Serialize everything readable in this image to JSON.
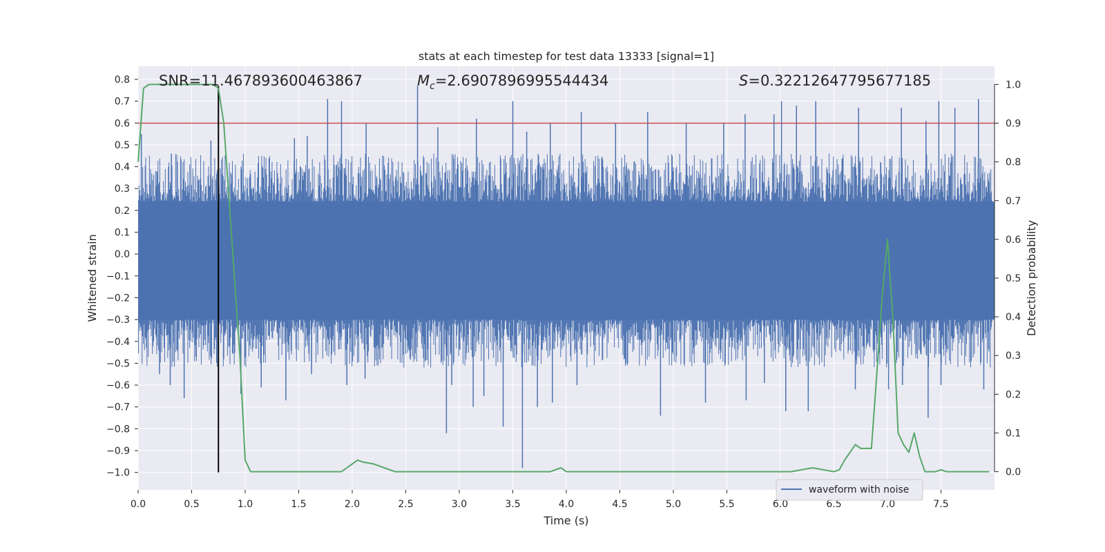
{
  "chart_data": {
    "type": "line",
    "title": "stats at each timestep for test data 13333 [signal=1]",
    "xlabel": "Time (s)",
    "ylabel": "Whitened strain",
    "y2label": "Detection probability",
    "xlim": [
      0.0,
      8.0
    ],
    "ylim": [
      -1.08,
      0.86
    ],
    "y2lim": [
      -0.047,
      1.047
    ],
    "x_ticks": [
      0.0,
      0.5,
      1.0,
      1.5,
      2.0,
      2.5,
      3.0,
      3.5,
      4.0,
      4.5,
      5.0,
      5.5,
      6.0,
      6.5,
      7.0,
      7.5
    ],
    "y_ticks": [
      0.8,
      0.7,
      0.6,
      0.5,
      0.4,
      0.3,
      0.2,
      0.1,
      0.0,
      -0.1,
      -0.2,
      -0.3,
      -0.4,
      -0.5,
      -0.6,
      -0.7,
      -0.8,
      -0.9,
      -1.0
    ],
    "y2_ticks": [
      1.0,
      0.9,
      0.8,
      0.7,
      0.6,
      0.5,
      0.4,
      0.3,
      0.2,
      0.1,
      0.0
    ],
    "grid": true,
    "legend": {
      "placement": "lower-right",
      "entries": [
        "waveform with noise"
      ]
    },
    "annotations": {
      "snr_label": "SNR=11.467893600463867",
      "mc_symbol": "M",
      "mc_subscript": "c",
      "mc_value": "=2.6907896995544434",
      "s_symbol": "S",
      "s_value": "=0.32212647795677185"
    },
    "threshold": {
      "value": 0.9,
      "axis": "right",
      "color": "#c44e52"
    },
    "marker_line": {
      "x": 0.75,
      "y_from": -1.0,
      "y_to": 0.77,
      "color": "#000000"
    },
    "waveform": {
      "name": "waveform with noise",
      "color": "#4c72b0",
      "typical_envelope": [
        -0.3,
        0.24
      ],
      "positive_spikes": [
        [
          0.03,
          0.55
        ],
        [
          0.31,
          0.46
        ],
        [
          0.68,
          0.52
        ],
        [
          1.46,
          0.53
        ],
        [
          1.58,
          0.54
        ],
        [
          1.77,
          0.71
        ],
        [
          1.9,
          0.7
        ],
        [
          2.13,
          0.6
        ],
        [
          2.61,
          0.77
        ],
        [
          2.8,
          0.58
        ],
        [
          3.16,
          0.62
        ],
        [
          3.5,
          0.7
        ],
        [
          3.63,
          0.56
        ],
        [
          3.85,
          0.6
        ],
        [
          4.14,
          0.65
        ],
        [
          4.46,
          0.6
        ],
        [
          4.76,
          0.65
        ],
        [
          5.12,
          0.6
        ],
        [
          5.47,
          0.6
        ],
        [
          5.67,
          0.64
        ],
        [
          5.94,
          0.64
        ],
        [
          6.01,
          0.7
        ],
        [
          6.15,
          0.68
        ],
        [
          6.33,
          0.7
        ],
        [
          6.73,
          0.67
        ],
        [
          7.13,
          0.67
        ],
        [
          7.36,
          0.61
        ],
        [
          7.48,
          0.7
        ],
        [
          7.63,
          0.67
        ],
        [
          7.85,
          0.71
        ]
      ],
      "negative_spikes": [
        [
          0.2,
          -0.55
        ],
        [
          0.3,
          -0.6
        ],
        [
          0.43,
          -0.66
        ],
        [
          0.96,
          -0.64
        ],
        [
          1.15,
          -0.61
        ],
        [
          1.38,
          -0.67
        ],
        [
          1.62,
          -0.55
        ],
        [
          1.95,
          -0.6
        ],
        [
          2.12,
          -0.57
        ],
        [
          2.88,
          -0.82
        ],
        [
          2.93,
          -0.6
        ],
        [
          3.13,
          -0.7
        ],
        [
          3.23,
          -0.65
        ],
        [
          3.41,
          -0.79
        ],
        [
          3.59,
          -0.98
        ],
        [
          3.73,
          -0.7
        ],
        [
          3.87,
          -0.68
        ],
        [
          4.1,
          -0.6
        ],
        [
          4.88,
          -0.74
        ],
        [
          5.3,
          -0.68
        ],
        [
          5.68,
          -0.67
        ],
        [
          5.85,
          -0.59
        ],
        [
          6.05,
          -0.72
        ],
        [
          6.26,
          -0.72
        ],
        [
          6.7,
          -0.62
        ],
        [
          7.01,
          -0.62
        ],
        [
          7.14,
          -0.6
        ],
        [
          7.38,
          -0.75
        ],
        [
          7.5,
          -0.6
        ],
        [
          7.9,
          -0.62
        ]
      ]
    },
    "probability": {
      "name": "detection probability",
      "color": "#55a868",
      "x": [
        0.0,
        0.05,
        0.1,
        0.15,
        0.2,
        0.3,
        0.4,
        0.5,
        0.6,
        0.65,
        0.7,
        0.75,
        0.8,
        0.85,
        0.9,
        0.95,
        1.0,
        1.05,
        1.1,
        1.2,
        1.3,
        1.4,
        1.5,
        1.6,
        1.7,
        1.75,
        1.8,
        1.9,
        1.95,
        2.0,
        2.05,
        2.1,
        2.2,
        2.25,
        2.3,
        2.4,
        2.5,
        2.6,
        2.7,
        2.8,
        2.9,
        3.0,
        3.1,
        3.2,
        3.3,
        3.4,
        3.5,
        3.6,
        3.7,
        3.8,
        3.85,
        3.95,
        4.0,
        4.1,
        4.2,
        4.3,
        4.4,
        4.5,
        4.6,
        4.7,
        4.8,
        4.9,
        5.0,
        5.1,
        5.2,
        5.3,
        5.4,
        5.5,
        5.6,
        5.7,
        5.8,
        5.9,
        6.0,
        6.1,
        6.2,
        6.3,
        6.4,
        6.5,
        6.55,
        6.6,
        6.65,
        6.7,
        6.75,
        6.8,
        6.85,
        6.9,
        6.95,
        7.0,
        7.05,
        7.1,
        7.15,
        7.2,
        7.25,
        7.3,
        7.35,
        7.4,
        7.45,
        7.5,
        7.55,
        7.6,
        7.65,
        7.7,
        7.8,
        7.9,
        7.95
      ],
      "values": [
        0.8,
        0.99,
        1.0,
        1.0,
        1.0,
        1.0,
        1.0,
        1.0,
        1.0,
        1.0,
        1.0,
        0.99,
        0.9,
        0.7,
        0.5,
        0.3,
        0.03,
        0.0,
        0.0,
        0.0,
        0.0,
        0.0,
        0.0,
        0.0,
        0.0,
        0.0,
        0.0,
        0.0,
        0.01,
        0.02,
        0.03,
        0.025,
        0.02,
        0.015,
        0.01,
        0.0,
        0.0,
        0.0,
        0.0,
        0.0,
        0.0,
        0.0,
        0.0,
        0.0,
        0.0,
        0.0,
        0.0,
        0.0,
        0.0,
        0.0,
        0.0,
        0.01,
        0.0,
        0.0,
        0.0,
        0.0,
        0.0,
        0.0,
        0.0,
        0.0,
        0.0,
        0.0,
        0.0,
        0.0,
        0.0,
        0.0,
        0.0,
        0.0,
        0.0,
        0.0,
        0.0,
        0.0,
        0.0,
        0.0,
        0.005,
        0.01,
        0.005,
        0.0,
        0.005,
        0.03,
        0.05,
        0.07,
        0.06,
        0.06,
        0.06,
        0.25,
        0.45,
        0.6,
        0.4,
        0.1,
        0.07,
        0.05,
        0.1,
        0.04,
        0.0,
        0.0,
        0.0,
        0.005,
        0.0,
        0.0,
        0.0,
        0.0,
        0.0,
        0.0,
        0.0
      ]
    }
  }
}
